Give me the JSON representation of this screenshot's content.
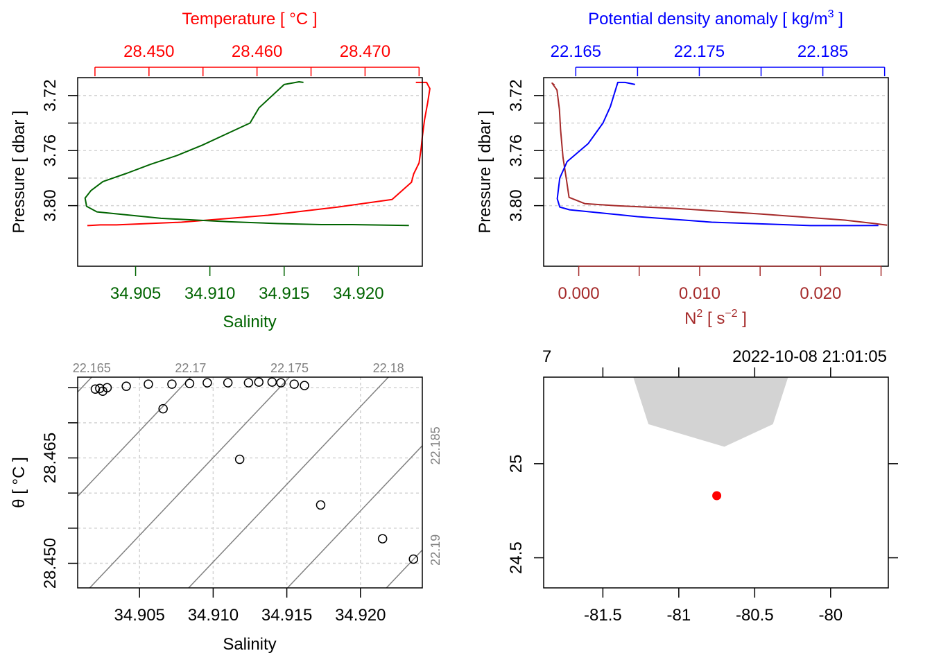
{
  "colors": {
    "temperature": "#ff0000",
    "salinity": "#006400",
    "density": "#0000ff",
    "n2": "#a52a2a",
    "isopycnal": "#808080",
    "grid": "#d3d3d3",
    "coast": "#d3d3d3",
    "station": "#ff0000",
    "axis": "#000000"
  },
  "chart_data": [
    {
      "id": "salinity-temperature-profile",
      "type": "line",
      "top_axis_label": "Temperature [ °C ]",
      "bottom_axis_label": "Salinity",
      "y_axis_label": "Pressure [ dbar ]",
      "top_ticks": [
        "28.450",
        "28.460",
        "28.470"
      ],
      "bottom_ticks": [
        "34.905",
        "34.910",
        "34.915",
        "34.920"
      ],
      "y_ticks": [
        "3.72",
        "3.76",
        "3.80"
      ],
      "pressure_range": [
        3.707,
        3.844
      ],
      "temperature_range": [
        28.4434,
        28.4753
      ],
      "salinity_range": [
        34.9011,
        34.9243
      ],
      "series": [
        {
          "name": "Temperature",
          "points": [
            [
              28.4443,
              3.8145
            ],
            [
              28.4455,
              3.814
            ],
            [
              28.447,
              3.814
            ],
            [
              28.453,
              3.812
            ],
            [
              28.461,
              3.807
            ],
            [
              28.4675,
              3.801
            ],
            [
              28.4725,
              3.7955
            ],
            [
              28.4743,
              3.783
            ],
            [
              28.4745,
              3.777
            ],
            [
              28.475,
              3.769
            ],
            [
              28.4752,
              3.758
            ],
            [
              28.4753,
              3.75
            ],
            [
              28.4755,
              3.738
            ],
            [
              28.4758,
              3.725
            ],
            [
              28.476,
              3.715
            ],
            [
              28.4757,
              3.7105
            ],
            [
              28.4747,
              3.7105
            ]
          ]
        },
        {
          "name": "Salinity",
          "points": [
            [
              34.9234,
              3.8144
            ],
            [
              34.9196,
              3.8138
            ],
            [
              34.9175,
              3.8138
            ],
            [
              34.9146,
              3.813
            ],
            [
              34.9113,
              3.8117
            ],
            [
              34.9067,
              3.8092
            ],
            [
              34.9024,
              3.8045
            ],
            [
              34.9017,
              3.8005
            ],
            [
              34.9016,
              3.7945
            ],
            [
              34.902,
              3.789
            ],
            [
              34.9028,
              3.7825
            ],
            [
              34.9044,
              3.7765
            ],
            [
              34.906,
              3.77
            ],
            [
              34.9078,
              3.7635
            ],
            [
              34.9095,
              3.756
            ],
            [
              34.9111,
              3.748
            ],
            [
              34.9127,
              3.74
            ],
            [
              34.9133,
              3.729
            ],
            [
              34.9142,
              3.72
            ],
            [
              34.915,
              3.712
            ],
            [
              34.916,
              3.71
            ],
            [
              34.9163,
              3.7105
            ]
          ]
        }
      ]
    },
    {
      "id": "density-n2-profile",
      "type": "line",
      "top_axis_label": "Potential density anomaly [ kg/m",
      "top_axis_label_sup": "3",
      "top_axis_label_end": " ]",
      "bottom_axis_label": "N",
      "bottom_axis_label_sup": "2",
      "bottom_axis_label_mid": " [ s",
      "bottom_axis_label_sup2": "−2",
      "bottom_axis_label_end": " ]",
      "y_axis_label": "Pressure [ dbar ]",
      "top_ticks": [
        "22.165",
        "22.175",
        "22.185"
      ],
      "bottom_ticks": [
        "0.000",
        "0.010",
        "0.020"
      ],
      "y_ticks": [
        "3.72",
        "3.76",
        "3.80"
      ],
      "pressure_range": [
        3.707,
        3.844
      ],
      "density_range": [
        22.1624,
        22.1903
      ],
      "n2_range": [
        -0.0029,
        0.0256
      ],
      "series": [
        {
          "name": "Potential density anomaly",
          "points": [
            [
              22.1698,
              3.712
            ],
            [
              22.169,
              3.7105
            ],
            [
              22.1684,
              3.7105
            ],
            [
              22.1678,
              3.728
            ],
            [
              22.1672,
              3.74
            ],
            [
              22.166,
              3.755
            ],
            [
              22.1643,
              3.768
            ],
            [
              22.1637,
              3.78
            ],
            [
              22.1635,
              3.795
            ],
            [
              22.1637,
              3.801
            ],
            [
              22.1645,
              3.803
            ],
            [
              22.17,
              3.808
            ],
            [
              22.176,
              3.812
            ],
            [
              22.184,
              3.8145
            ],
            [
              22.1875,
              3.8145
            ],
            [
              22.1895,
              3.8144
            ]
          ]
        },
        {
          "name": "N2",
          "points": [
            [
              -0.002,
              3.7125
            ],
            [
              -0.0022,
              3.711
            ],
            [
              -0.0018,
              3.716
            ],
            [
              -0.0016,
              3.73
            ],
            [
              -0.0015,
              3.745
            ],
            [
              -0.0013,
              3.765
            ],
            [
              -0.001,
              3.782
            ],
            [
              -0.0008,
              3.794
            ],
            [
              0.0005,
              3.7985
            ],
            [
              0.003,
              3.8
            ],
            [
              0.008,
              3.802
            ],
            [
              0.015,
              3.806
            ],
            [
              0.022,
              3.8105
            ],
            [
              0.0245,
              3.813
            ],
            [
              0.0255,
              3.8142
            ]
          ]
        }
      ]
    },
    {
      "id": "ts-diagram",
      "type": "scatter",
      "x_axis_label": "Salinity",
      "y_axis_label": "θ [ °C ]",
      "x_ticks": [
        "34.905",
        "34.910",
        "34.915",
        "34.920"
      ],
      "y_ticks": [
        "28.450",
        "28.465"
      ],
      "x_range": [
        34.9008,
        34.9242
      ],
      "y_range": [
        28.4465,
        28.4765
      ],
      "isopycnal_labels": [
        "22.165",
        "22.17",
        "22.175",
        "22.18",
        "22.185",
        "22.19"
      ],
      "points": [
        [
          34.902,
          28.4748
        ],
        [
          34.9023,
          28.4749
        ],
        [
          34.9025,
          28.4745
        ],
        [
          34.9028,
          28.475
        ],
        [
          34.9041,
          28.4752
        ],
        [
          34.9056,
          28.4755
        ],
        [
          34.9072,
          28.4755
        ],
        [
          34.9084,
          28.4756
        ],
        [
          34.9096,
          28.4757
        ],
        [
          34.911,
          28.4757
        ],
        [
          34.9124,
          28.4757
        ],
        [
          34.9131,
          28.4758
        ],
        [
          34.914,
          28.4758
        ],
        [
          34.9146,
          28.4757
        ],
        [
          34.9155,
          28.4755
        ],
        [
          34.9162,
          28.4753
        ],
        [
          34.9066,
          28.472
        ],
        [
          34.9118,
          28.4648
        ],
        [
          34.9173,
          28.4583
        ],
        [
          34.9215,
          28.4535
        ],
        [
          34.9236,
          28.4506
        ]
      ]
    },
    {
      "id": "station-map",
      "type": "scatter",
      "top_label_left": "7",
      "top_label_right": "2022-10-08 21:01:05",
      "x_ticks": [
        "-81.5",
        "-81",
        "-80.5",
        "-80"
      ],
      "y_ticks": [
        "24.5",
        "25"
      ],
      "lon_range": [
        -81.89,
        -79.62
      ],
      "lat_range": [
        24.34,
        25.46
      ],
      "land_polygon": [
        [
          -81.3,
          25.46
        ],
        [
          -81.2,
          25.21
        ],
        [
          -80.7,
          25.09
        ],
        [
          -80.38,
          25.21
        ],
        [
          -80.28,
          25.46
        ]
      ],
      "station": {
        "lon": -80.75,
        "lat": 24.83
      }
    }
  ]
}
